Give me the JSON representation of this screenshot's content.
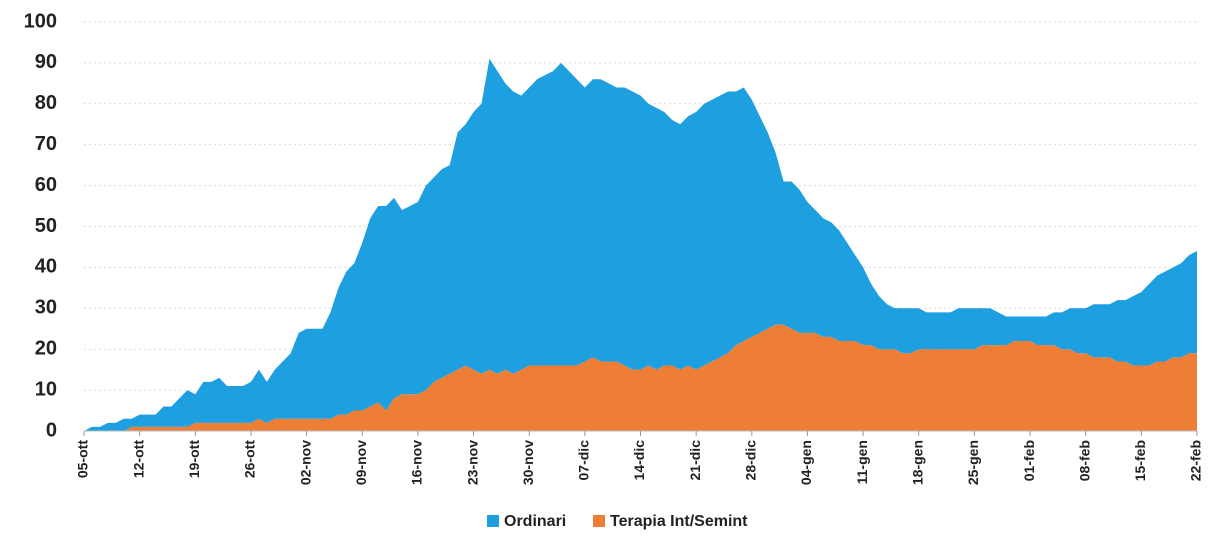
{
  "chart_data": {
    "type": "stacked_area",
    "categories": [
      "05-ott",
      null,
      null,
      null,
      null,
      null,
      null,
      "12-ott",
      null,
      null,
      null,
      null,
      null,
      null,
      "19-ott",
      null,
      null,
      null,
      null,
      null,
      null,
      "26-ott",
      null,
      null,
      null,
      null,
      null,
      null,
      "02-nov",
      null,
      null,
      null,
      null,
      null,
      null,
      "09-nov",
      null,
      null,
      null,
      null,
      null,
      null,
      "16-nov",
      null,
      null,
      null,
      null,
      null,
      null,
      "23-nov",
      null,
      null,
      null,
      null,
      null,
      null,
      "30-nov",
      null,
      null,
      null,
      null,
      null,
      null,
      "07-dic",
      null,
      null,
      null,
      null,
      null,
      null,
      "14-dic",
      null,
      null,
      null,
      null,
      null,
      null,
      "21-dic",
      null,
      null,
      null,
      null,
      null,
      null,
      "28-dic",
      null,
      null,
      null,
      null,
      null,
      null,
      "04-gen",
      null,
      null,
      null,
      null,
      null,
      null,
      "11-gen",
      null,
      null,
      null,
      null,
      null,
      null,
      "18-gen",
      null,
      null,
      null,
      null,
      null,
      null,
      "25-gen",
      null,
      null,
      null,
      null,
      null,
      null,
      "01-feb",
      null,
      null,
      null,
      null,
      null,
      null,
      "08-feb",
      null,
      null,
      null,
      null,
      null,
      null,
      "15-feb",
      null,
      null,
      null,
      null,
      null,
      null,
      "22-feb"
    ],
    "series": [
      {
        "name": "Ordinari",
        "color": "#1e9fe0",
        "values": [
          0,
          1,
          1,
          2,
          2,
          3,
          2,
          3,
          3,
          3,
          5,
          5,
          7,
          9,
          7,
          10,
          10,
          11,
          9,
          9,
          9,
          10,
          12,
          10,
          12,
          14,
          16,
          21,
          22,
          22,
          22,
          26,
          31,
          35,
          36,
          41,
          46,
          48,
          50,
          49,
          45,
          46,
          47,
          50,
          50,
          51,
          51,
          58,
          59,
          63,
          66,
          76,
          74,
          70,
          69,
          67,
          68,
          70,
          71,
          72,
          74,
          72,
          70,
          67,
          68,
          69,
          68,
          67,
          68,
          68,
          67,
          64,
          64,
          62,
          60,
          60,
          61,
          63,
          64,
          64,
          64,
          64,
          62,
          62,
          58,
          53,
          48,
          42,
          35,
          36,
          35,
          32,
          30,
          29,
          28,
          27,
          24,
          21,
          19,
          15,
          13,
          11,
          10,
          11,
          11,
          10,
          9,
          9,
          9,
          9,
          10,
          10,
          10,
          9,
          9,
          8,
          7,
          6,
          6,
          6,
          7,
          7,
          8,
          9,
          10,
          11,
          11,
          13,
          13,
          13,
          15,
          15,
          17,
          18,
          20,
          21,
          22,
          22,
          23,
          24,
          25
        ]
      },
      {
        "name": "Terapia Int/Semint",
        "color": "#ee7d35",
        "values": [
          0,
          0,
          0,
          0,
          0,
          0,
          1,
          1,
          1,
          1,
          1,
          1,
          1,
          1,
          2,
          2,
          2,
          2,
          2,
          2,
          2,
          2,
          3,
          2,
          3,
          3,
          3,
          3,
          3,
          3,
          3,
          3,
          4,
          4,
          5,
          5,
          6,
          7,
          5,
          8,
          9,
          9,
          9,
          10,
          12,
          13,
          14,
          15,
          16,
          15,
          14,
          15,
          14,
          15,
          14,
          15,
          16,
          16,
          16,
          16,
          16,
          16,
          16,
          17,
          18,
          17,
          17,
          17,
          16,
          15,
          15,
          16,
          15,
          16,
          16,
          15,
          16,
          15,
          16,
          17,
          18,
          19,
          21,
          22,
          23,
          24,
          25,
          26,
          26,
          25,
          24,
          24,
          24,
          23,
          23,
          22,
          22,
          22,
          21,
          21,
          20,
          20,
          20,
          19,
          19,
          20,
          20,
          20,
          20,
          20,
          20,
          20,
          20,
          21,
          21,
          21,
          21,
          22,
          22,
          22,
          21,
          21,
          21,
          20,
          20,
          19,
          19,
          18,
          18,
          18,
          17,
          17,
          16,
          16,
          16,
          17,
          17,
          18,
          18,
          19,
          19
        ]
      }
    ],
    "ylim": [
      0,
      100
    ],
    "yticks": [
      0,
      10,
      20,
      30,
      40,
      50,
      60,
      70,
      80,
      90,
      100
    ],
    "grid": true,
    "legend": "bottom"
  }
}
